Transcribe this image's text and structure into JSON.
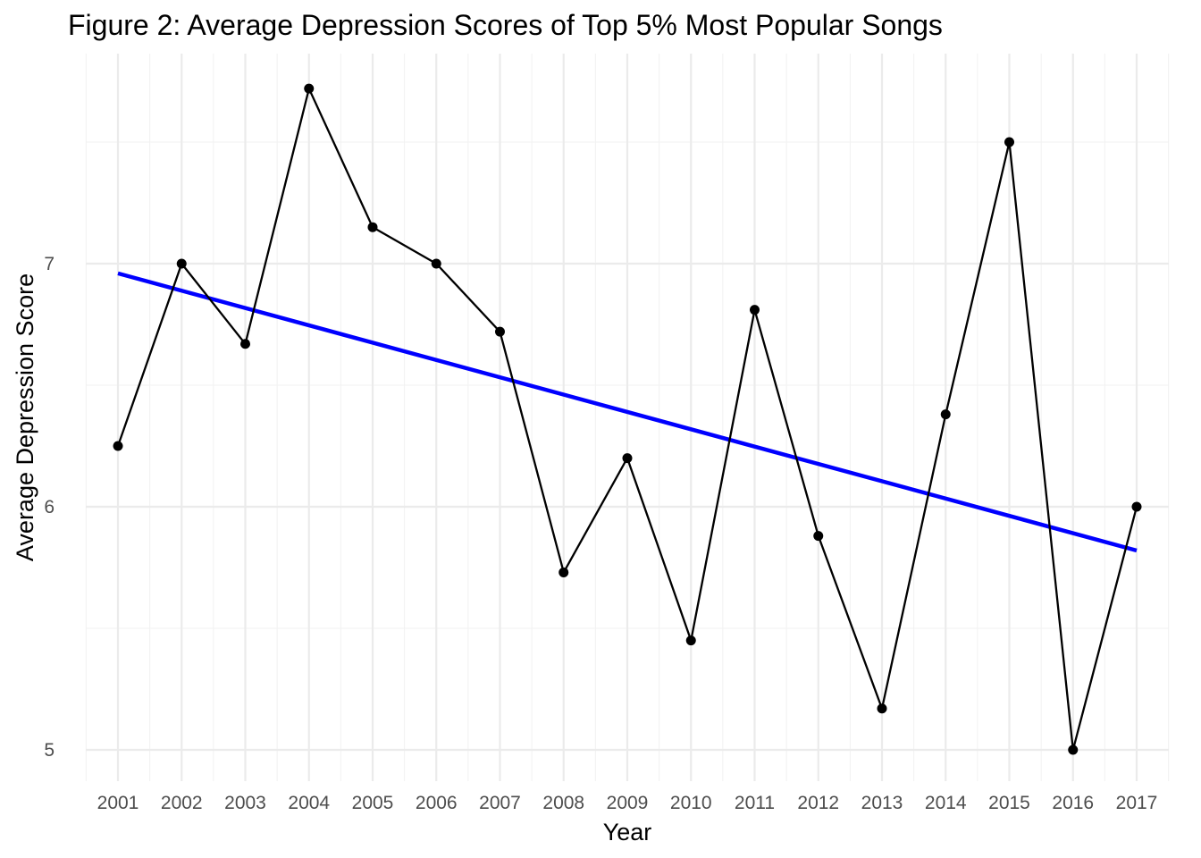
{
  "chart_data": {
    "type": "line",
    "title": "Figure 2: Average Depression Scores of Top 5% Most Popular Songs",
    "xlabel": "Year",
    "ylabel": "Average Depression Score",
    "categories": [
      "2001",
      "2002",
      "2003",
      "2004",
      "2005",
      "2006",
      "2007",
      "2008",
      "2009",
      "2010",
      "2011",
      "2012",
      "2013",
      "2014",
      "2015",
      "2016",
      "2017"
    ],
    "series": [
      {
        "values": [
          6.25,
          7.0,
          6.67,
          7.72,
          7.15,
          7.0,
          6.72,
          5.73,
          6.2,
          5.45,
          6.81,
          5.88,
          5.17,
          6.38,
          7.5,
          5.0,
          6.0
        ],
        "color": "#000000"
      }
    ],
    "trend_line": {
      "start": 6.96,
      "end": 5.82,
      "color": "#0000ff"
    },
    "y_ticks": [
      5,
      6,
      7
    ],
    "y_tick_labels": [
      "5",
      "6",
      "7"
    ],
    "ylim": [
      4.87,
      7.78
    ],
    "grid": true,
    "legend": "none"
  }
}
